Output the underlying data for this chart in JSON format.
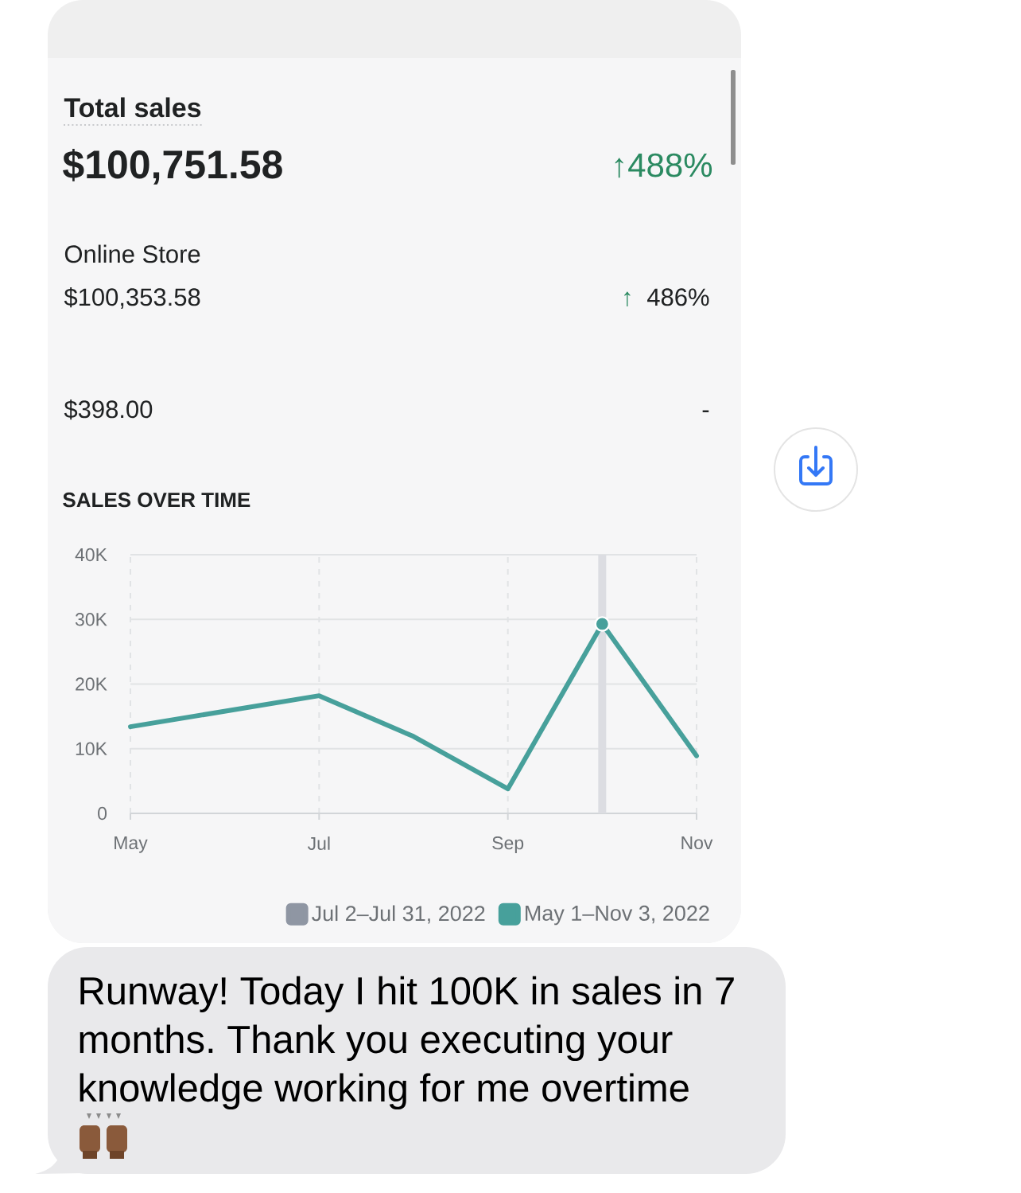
{
  "chart_data": {
    "type": "line",
    "title": "SALES OVER TIME",
    "x": [
      "2022-05",
      "2022-07",
      "2022-08",
      "2022-09",
      "2022-10",
      "2022-11"
    ],
    "series": [
      {
        "name": "Jul 2–Jul 31, 2022",
        "color": "#8f96a3",
        "values": [
          null,
          null,
          null,
          null,
          null,
          null
        ]
      },
      {
        "name": "May 1–Nov 3, 2022",
        "color": "#47a09b",
        "values": [
          13400,
          18200,
          11900,
          3800,
          29300,
          8900
        ]
      },
      {
        "type": "scatter",
        "color": "#47a09b",
        "marker": "circle",
        "x": [
          "2022-10"
        ],
        "values": [
          29300
        ]
      }
    ],
    "xlim": [
      "2022-05",
      "2022-11"
    ],
    "xticks": [
      {
        "value": "2022-05",
        "label": "May"
      },
      {
        "value": "2022-07",
        "label": "Jul"
      },
      {
        "value": "2022-09",
        "label": "Sep"
      },
      {
        "value": "2022-11",
        "label": "Nov"
      }
    ],
    "ylim": [
      0,
      40000
    ],
    "yticks": [
      0,
      {
        "value": 10000,
        "label": "10K"
      },
      {
        "value": 20000,
        "label": "20K"
      },
      {
        "value": 30000,
        "label": "30K"
      },
      {
        "value": 40000,
        "label": "40K"
      }
    ],
    "grid": true,
    "legend": "bottom right",
    "ref_lines": [
      {
        "axis": "x",
        "value": "2022-10",
        "color": "#dcdde2"
      }
    ],
    "annotations": [
      "Total sales",
      "$100,751.58",
      "↑488%",
      "Online Store",
      "$100,353.58",
      "↑",
      "486%",
      "$398.00",
      "-",
      "Runway! Today I hit 100K in sales in 7 months. Thank you executing your knowledge working for me overtime"
    ]
  }
}
